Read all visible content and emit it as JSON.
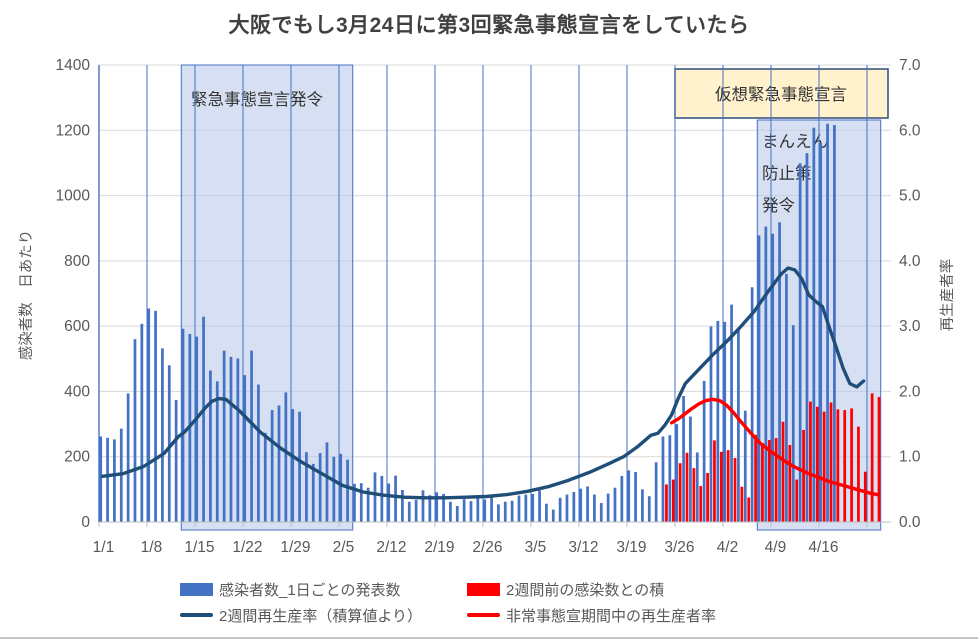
{
  "title": "大阪でもし3月24日に第3回緊急事態宣言をしていたら",
  "y_left": {
    "title": "感染者数　日あたり",
    "ticks": [
      "1400",
      "1200",
      "1000",
      "800",
      "600",
      "400",
      "200",
      "0"
    ]
  },
  "y_right": {
    "title": "再生産者率",
    "ticks": [
      "7.0",
      "6.0",
      "5.0",
      "4.0",
      "3.0",
      "2.0",
      "1.0",
      "0.0"
    ]
  },
  "x_axis": {
    "tick_labels": [
      "1/1",
      "1/8",
      "1/15",
      "1/22",
      "1/29",
      "2/5",
      "2/12",
      "2/19",
      "2/26",
      "3/5",
      "3/12",
      "3/19",
      "3/26",
      "4/2",
      "4/9",
      "4/16"
    ]
  },
  "annotations": {
    "region1_label": "緊急事態宣言発令",
    "virtual_box_label": "仮想緊急事態宣言",
    "manen_lines": [
      "まんえん",
      "防止策",
      "発令"
    ]
  },
  "legend": [
    {
      "label": "感染者数_1日ごとの発表数",
      "swatch": "bar",
      "color": "#4472C4"
    },
    {
      "label": "2週間前の感染数との積",
      "swatch": "bar",
      "color": "#FF0000"
    },
    {
      "label": "2週間再生産率（積算値より）",
      "swatch": "line",
      "color": "#1F4E79"
    },
    {
      "label": "非常事態宣期間中の再生産者率",
      "swatch": "line",
      "color": "#FF0000"
    }
  ],
  "colors": {
    "bar_blue": "#4472C4",
    "bar_red": "#FF0000",
    "line_dark_blue": "#1F4E79",
    "line_red": "#FF0000",
    "region_fill": "#B4C7E7",
    "grid_blue": "#4472C4",
    "grid_gray": "#D9D9D9",
    "axis_line": "#BFBFBF",
    "axis_text": "#595959",
    "annotation_box_fill": "#FFF2CC",
    "annotation_box_border": "#2E4D7E"
  },
  "chart_data": {
    "type": "combo",
    "title": "大阪でもし3月24日に第3回緊急事態宣言をしていたら",
    "ylabel_left": "感染者数　日あたり",
    "ylabel_right": "再生産者率",
    "ylim_left": [
      0,
      1400
    ],
    "ylim_right": [
      0,
      7
    ],
    "categories": [
      "1/1",
      "1/2",
      "1/3",
      "1/4",
      "1/5",
      "1/6",
      "1/7",
      "1/8",
      "1/9",
      "1/10",
      "1/11",
      "1/12",
      "1/13",
      "1/14",
      "1/15",
      "1/16",
      "1/17",
      "1/18",
      "1/19",
      "1/20",
      "1/21",
      "1/22",
      "1/23",
      "1/24",
      "1/25",
      "1/26",
      "1/27",
      "1/28",
      "1/29",
      "1/30",
      "1/31",
      "2/1",
      "2/2",
      "2/3",
      "2/4",
      "2/5",
      "2/6",
      "2/7",
      "2/8",
      "2/9",
      "2/10",
      "2/11",
      "2/12",
      "2/13",
      "2/14",
      "2/15",
      "2/16",
      "2/17",
      "2/18",
      "2/19",
      "2/20",
      "2/21",
      "2/22",
      "2/23",
      "2/24",
      "2/25",
      "2/26",
      "2/27",
      "2/28",
      "3/1",
      "3/2",
      "3/3",
      "3/4",
      "3/5",
      "3/6",
      "3/7",
      "3/8",
      "3/9",
      "3/10",
      "3/11",
      "3/12",
      "3/13",
      "3/14",
      "3/15",
      "3/16",
      "3/17",
      "3/18",
      "3/19",
      "3/20",
      "3/21",
      "3/22",
      "3/23",
      "3/24",
      "3/25",
      "3/26",
      "3/27",
      "3/28",
      "3/29",
      "3/30",
      "3/31",
      "4/1",
      "4/2",
      "4/3",
      "4/4",
      "4/5",
      "4/6",
      "4/7",
      "4/8",
      "4/9",
      "4/10",
      "4/11",
      "4/12",
      "4/13",
      "4/14",
      "4/15",
      "4/16",
      "4/17",
      "4/18",
      "4/19",
      "4/20",
      "4/21",
      "4/22",
      "4/23",
      "4/24"
    ],
    "series": [
      {
        "name": "感染者数_1日ごとの発表数",
        "type": "bar",
        "axis": "left",
        "color": "#4472C4",
        "values": [
          262,
          258,
          253,
          286,
          394,
          560,
          607,
          654,
          647,
          532,
          480,
          374,
          592,
          576,
          568,
          629,
          464,
          431,
          525,
          506,
          501,
          450,
          525,
          421,
          273,
          343,
          357,
          397,
          346,
          338,
          214,
          178,
          211,
          244,
          200,
          209,
          191,
          117,
          119,
          105,
          152,
          141,
          118,
          142,
          98,
          62,
          68,
          97,
          82,
          91,
          86,
          62,
          49,
          70,
          64,
          82,
          69,
          84,
          54,
          62,
          65,
          81,
          84,
          86,
          97,
          56,
          38,
          74,
          84,
          92,
          102,
          109,
          84,
          58,
          87,
          105,
          141,
          158,
          153,
          100,
          79,
          183,
          262,
          266,
          300,
          386,
          323,
          213,
          432,
          599,
          616,
          613,
          666,
          593,
          341,
          719,
          878,
          905,
          883,
          918,
          760,
          603,
          1099,
          1130,
          1208,
          1161,
          1220,
          1216,
          null,
          null,
          null,
          null,
          null,
          null
        ]
      },
      {
        "name": "2週間前の感染数との積",
        "type": "bar",
        "axis": "left",
        "color": "#FF0000",
        "values": [
          null,
          null,
          null,
          null,
          null,
          null,
          null,
          null,
          null,
          null,
          null,
          null,
          null,
          null,
          null,
          null,
          null,
          null,
          null,
          null,
          null,
          null,
          null,
          null,
          null,
          null,
          null,
          null,
          null,
          null,
          null,
          null,
          null,
          null,
          null,
          null,
          null,
          null,
          null,
          null,
          null,
          null,
          null,
          null,
          null,
          null,
          null,
          null,
          null,
          null,
          null,
          null,
          null,
          null,
          null,
          null,
          null,
          null,
          null,
          null,
          null,
          null,
          null,
          null,
          null,
          null,
          null,
          null,
          null,
          null,
          null,
          null,
          null,
          null,
          null,
          null,
          null,
          null,
          null,
          null,
          null,
          null,
          115,
          130,
          180,
          212,
          165,
          110,
          150,
          250,
          215,
          220,
          196,
          108,
          75,
          267,
          242,
          251,
          257,
          307,
          236,
          130,
          282,
          369,
          353,
          338,
          366,
          345,
          343,
          348,
          292,
          154,
          394,
          383
        ]
      },
      {
        "name": "2週間再生産率（積算値より）",
        "type": "line",
        "axis": "right",
        "color": "#1F4E79",
        "points": [
          [
            0,
            0.7
          ],
          [
            3,
            0.74
          ],
          [
            6,
            0.85
          ],
          [
            9,
            1.05
          ],
          [
            11,
            1.3
          ],
          [
            12,
            1.38
          ],
          [
            13,
            1.5
          ],
          [
            14,
            1.62
          ],
          [
            15,
            1.75
          ],
          [
            16,
            1.85
          ],
          [
            17,
            1.89
          ],
          [
            18,
            1.88
          ],
          [
            20,
            1.7
          ],
          [
            23,
            1.38
          ],
          [
            26,
            1.13
          ],
          [
            29,
            0.92
          ],
          [
            32,
            0.74
          ],
          [
            35,
            0.56
          ],
          [
            38,
            0.46
          ],
          [
            41,
            0.41
          ],
          [
            44,
            0.38
          ],
          [
            47,
            0.37
          ],
          [
            50,
            0.37
          ],
          [
            53,
            0.38
          ],
          [
            56,
            0.39
          ],
          [
            59,
            0.42
          ],
          [
            62,
            0.47
          ],
          [
            65,
            0.54
          ],
          [
            68,
            0.64
          ],
          [
            71,
            0.76
          ],
          [
            74,
            0.9
          ],
          [
            76,
            1.0
          ],
          [
            78,
            1.15
          ],
          [
            80,
            1.33
          ],
          [
            81,
            1.36
          ],
          [
            82,
            1.48
          ],
          [
            83,
            1.64
          ],
          [
            84,
            1.9
          ],
          [
            85,
            2.12
          ],
          [
            87,
            2.34
          ],
          [
            89,
            2.56
          ],
          [
            91,
            2.76
          ],
          [
            93,
            2.98
          ],
          [
            95,
            3.22
          ],
          [
            97,
            3.52
          ],
          [
            99,
            3.8
          ],
          [
            100,
            3.89
          ],
          [
            101,
            3.86
          ],
          [
            102,
            3.72
          ],
          [
            103,
            3.48
          ],
          [
            104,
            3.38
          ],
          [
            105,
            3.3
          ],
          [
            106,
            2.98
          ],
          [
            107,
            2.68
          ],
          [
            108,
            2.36
          ],
          [
            109,
            2.12
          ],
          [
            110,
            2.07
          ],
          [
            111,
            2.16
          ]
        ]
      },
      {
        "name": "非常事態宣期間中の再生産者率",
        "type": "line",
        "axis": "right",
        "color": "#FF0000",
        "points": [
          [
            83,
            1.52
          ],
          [
            84,
            1.58
          ],
          [
            85,
            1.66
          ],
          [
            86,
            1.74
          ],
          [
            87,
            1.81
          ],
          [
            88,
            1.86
          ],
          [
            89,
            1.88
          ],
          [
            90,
            1.86
          ],
          [
            91,
            1.79
          ],
          [
            92,
            1.68
          ],
          [
            93,
            1.55
          ],
          [
            94,
            1.43
          ],
          [
            95,
            1.31
          ],
          [
            96,
            1.2
          ],
          [
            97,
            1.12
          ],
          [
            98,
            1.04
          ],
          [
            99,
            0.97
          ],
          [
            100,
            0.9
          ],
          [
            101,
            0.84
          ],
          [
            102,
            0.79
          ],
          [
            103,
            0.74
          ],
          [
            104,
            0.7
          ],
          [
            105,
            0.66
          ],
          [
            106,
            0.62
          ],
          [
            107,
            0.59
          ],
          [
            108,
            0.56
          ],
          [
            109,
            0.53
          ],
          [
            110,
            0.5
          ],
          [
            111,
            0.47
          ],
          [
            112,
            0.44
          ],
          [
            113,
            0.42
          ]
        ]
      }
    ],
    "regions": [
      {
        "label": "緊急事態宣言発令",
        "start": "1/13",
        "end": "2/6"
      },
      {
        "label": "仮想緊急事態宣言",
        "start": "4/7",
        "end": "4/24"
      }
    ],
    "grid": "on",
    "legend_position": "bottom"
  }
}
